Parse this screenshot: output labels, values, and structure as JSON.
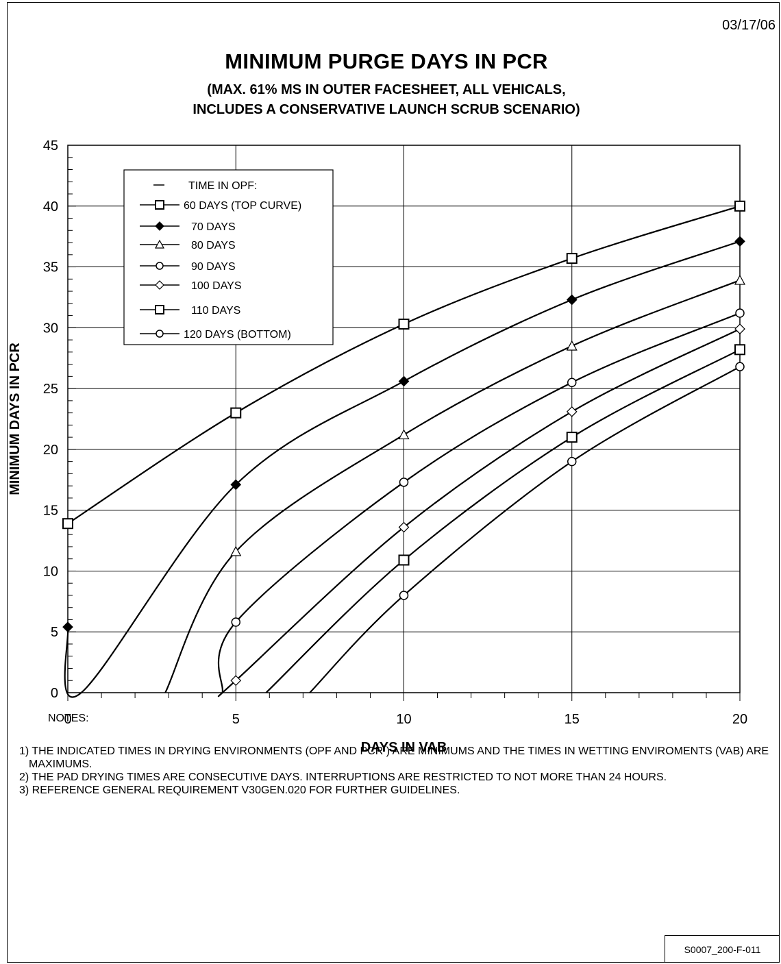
{
  "date": "03/17/06",
  "footer_ref": "S0007_200-F-011",
  "notes_heading": "NOTES:",
  "notes": [
    "1) THE INDICATED TIMES IN DRYING ENVIRONMENTS (OPF AND PCR ) ARE MINIMUMS AND THE TIMES IN WETTING ENVIROMENTS (VAB) ARE MAXIMUMS.",
    "2) THE PAD DRYING TIMES ARE CONSECUTIVE DAYS. INTERRUPTIONS ARE RESTRICTED TO NOT MORE THAN 24 HOURS.",
    "3) REFERENCE GENERAL REQUIREMENT V30GEN.020 FOR FURTHER GUIDELINES."
  ],
  "chart_data": {
    "type": "line",
    "title": "MINIMUM PURGE DAYS IN PCR",
    "subtitle_lines": [
      "(MAX. 61% MS IN OUTER FACESHEET, ALL VEHICALS,",
      "INCLUDES A CONSERVATIVE LAUNCH SCRUB SCENARIO)"
    ],
    "xlabel": "DAYS IN VAB",
    "ylabel": "MINIMUM DAYS IN PCR",
    "xlim": [
      0,
      20
    ],
    "ylim": [
      0,
      45
    ],
    "xticks": [
      0,
      5,
      10,
      15,
      20
    ],
    "yticks": [
      0,
      5,
      10,
      15,
      20,
      25,
      30,
      35,
      40,
      45
    ],
    "grid": true,
    "legend_title": "TIME IN OPF:",
    "legend_position": "top-left",
    "series": [
      {
        "name": "60 DAYS (TOP CURVE)",
        "marker": "square",
        "points": [
          [
            0,
            13.9
          ],
          [
            5,
            23.0
          ],
          [
            10,
            30.3
          ],
          [
            15,
            35.7
          ],
          [
            20,
            40.0
          ]
        ]
      },
      {
        "name": "70 DAYS",
        "marker": "diamond-filled",
        "points": [
          [
            0,
            5.4
          ],
          [
            5,
            17.1
          ],
          [
            10,
            25.6
          ],
          [
            15,
            32.3
          ],
          [
            20,
            37.1
          ]
        ],
        "zero_crossing": 0.4
      },
      {
        "name": "80 DAYS",
        "marker": "triangle",
        "points": [
          [
            5,
            11.6
          ],
          [
            10,
            21.2
          ],
          [
            15,
            28.5
          ],
          [
            20,
            33.9
          ]
        ],
        "zero_crossing": 2.9
      },
      {
        "name": "90 DAYS",
        "marker": "circle",
        "points": [
          [
            5,
            5.8
          ],
          [
            10,
            17.3
          ],
          [
            15,
            25.5
          ],
          [
            20,
            31.2
          ]
        ],
        "zero_crossing": 4.6
      },
      {
        "name": "100 DAYS",
        "marker": "diamond",
        "points": [
          [
            5,
            1.0
          ],
          [
            10,
            13.6
          ],
          [
            15,
            23.1
          ],
          [
            20,
            29.9
          ]
        ],
        "zero_crossing": 4.6
      },
      {
        "name": "110 DAYS",
        "marker": "square",
        "points": [
          [
            10,
            10.9
          ],
          [
            15,
            21.0
          ],
          [
            20,
            28.2
          ]
        ],
        "zero_crossing": 5.9
      },
      {
        "name": "120 DAYS (BOTTOM)",
        "marker": "circle",
        "points": [
          [
            10,
            8.0
          ],
          [
            15,
            19.0
          ],
          [
            20,
            26.8
          ]
        ],
        "zero_crossing": 7.2
      }
    ]
  }
}
